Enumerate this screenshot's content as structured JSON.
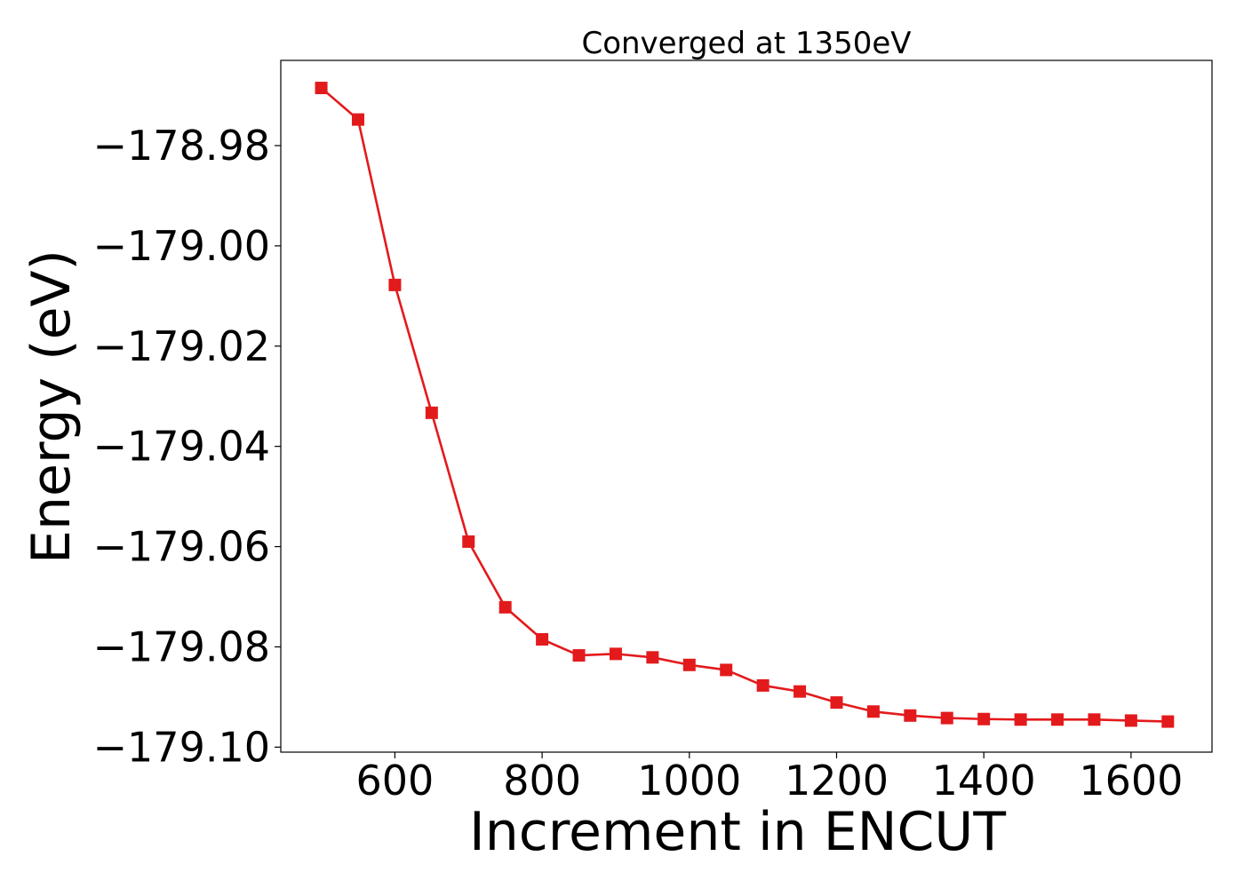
{
  "chart_data": {
    "type": "line",
    "title": "Converged at 1350eV",
    "xlabel": "Increment in ENCUT",
    "ylabel": "Energy (eV)",
    "xlim": [
      445,
      1710
    ],
    "ylim": [
      -179.101,
      -178.963
    ],
    "xticks": [
      600,
      800,
      1000,
      1200,
      1400,
      1600
    ],
    "xtick_labels": [
      "600",
      "800",
      "1000",
      "1200",
      "1400",
      "1600"
    ],
    "yticks": [
      -178.98,
      -179.0,
      -179.02,
      -179.04,
      -179.06,
      -179.08,
      -179.1
    ],
    "ytick_labels": [
      "−178.98",
      "−179.00",
      "−179.02",
      "−179.04",
      "−179.06",
      "−179.08",
      "−179.10"
    ],
    "grid": false,
    "series": [
      {
        "color": "#e31a1c",
        "marker": "square",
        "x": [
          500,
          550,
          600,
          650,
          700,
          750,
          800,
          850,
          900,
          950,
          1000,
          1050,
          1100,
          1150,
          1200,
          1250,
          1300,
          1350,
          1400,
          1450,
          1500,
          1550,
          1600,
          1650
        ],
        "y": [
          -178.9685,
          -178.9748,
          -179.0078,
          -179.0333,
          -179.059,
          -179.0721,
          -179.0785,
          -179.0817,
          -179.0814,
          -179.0821,
          -179.0836,
          -179.0846,
          -179.0877,
          -179.0889,
          -179.0911,
          -179.0929,
          -179.0937,
          -179.0942,
          -179.0944,
          -179.0945,
          -179.0945,
          -179.0945,
          -179.0947,
          -179.0949
        ]
      }
    ]
  }
}
